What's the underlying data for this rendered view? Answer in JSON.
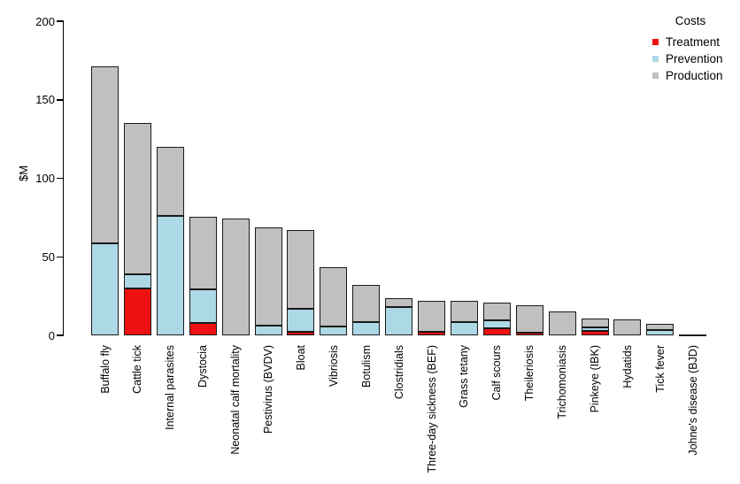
{
  "figure": {
    "background": "#ffffff",
    "axis_color": "#000000",
    "bar_border_color": "#1a1a1a"
  },
  "chart_data": {
    "type": "bar",
    "stacked": true,
    "title": "",
    "xlabel": "",
    "ylabel": "$M",
    "ylim": [
      0,
      200
    ],
    "yticks": [
      0,
      50,
      100,
      150,
      200
    ],
    "grid": false,
    "legend_title": "Costs",
    "legend_position": "top-right",
    "categories": [
      "Buffalo fly",
      "Cattle tick",
      "Internal parasites",
      "Dystocia",
      "Neonatal calf mortality",
      "Pestivirus (BVDV)",
      "Bloat",
      "Vibriosis",
      "Botulism",
      "Clostridials",
      "Three-day sickness (BEF)",
      "Grass tetany",
      "Calf scours",
      "Theileriosis",
      "Trichomoniasis",
      "Pinkeye (IBK)",
      "Hydatids",
      "Tick fever",
      "Johne's disease (BJD)"
    ],
    "series": [
      {
        "name": "Treatment",
        "color": "#ee1111",
        "values": [
          0,
          30,
          0,
          8,
          0,
          0,
          2.5,
          0,
          0,
          0,
          2,
          0,
          4.5,
          1.5,
          0,
          2.8,
          0,
          0,
          0
        ]
      },
      {
        "name": "Prevention",
        "color": "#add8e6",
        "values": [
          58.5,
          9,
          76,
          21.5,
          0,
          6,
          14.5,
          5.5,
          8.3,
          18,
          0,
          8.7,
          5.1,
          0,
          0,
          2.4,
          0,
          3.4,
          0
        ]
      },
      {
        "name": "Production",
        "color": "#c0c0c0",
        "values": [
          113,
          96,
          44,
          46,
          74.5,
          63,
          50.3,
          38,
          23.8,
          5.7,
          20.2,
          13.5,
          11.3,
          17.5,
          15.2,
          5.3,
          10.2,
          3.8,
          0.8
        ]
      }
    ],
    "totals": [
      171.5,
      135,
      120,
      75.5,
      74.5,
      69,
      67.3,
      43.5,
      32.1,
      23.7,
      22.2,
      22.2,
      20.9,
      19,
      15.2,
      10.5,
      10.2,
      7.2,
      0.8
    ]
  }
}
